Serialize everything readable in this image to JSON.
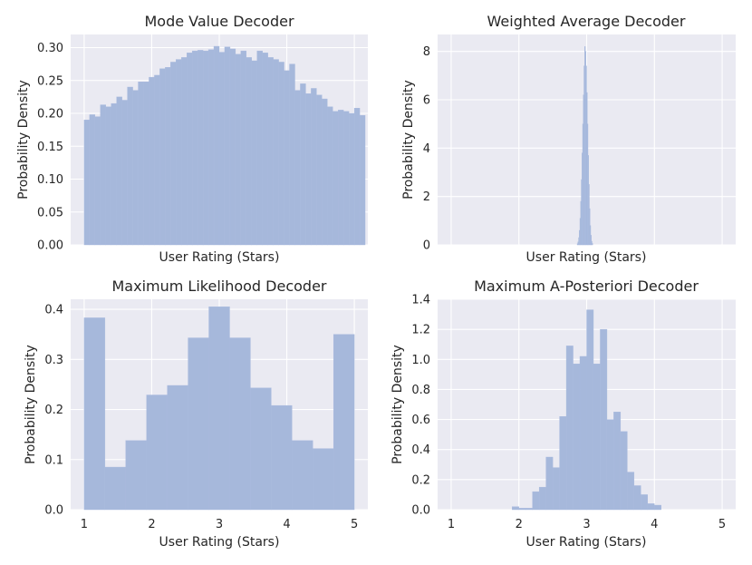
{
  "chart_data": [
    {
      "type": "bar",
      "title": "Mode Value Decoder",
      "xlabel": "User Rating (Stars)",
      "ylabel": "Probability Density",
      "xlim": [
        0.8,
        5.2
      ],
      "ylim": [
        0,
        0.32
      ],
      "xticks": [],
      "yticks": [
        0.0,
        0.05,
        0.1,
        0.15,
        0.2,
        0.25,
        0.3
      ],
      "ytick_labels": [
        "0.00",
        "0.05",
        "0.10",
        "0.15",
        "0.20",
        "0.25",
        "0.30"
      ],
      "bin_start": 1.0,
      "bin_width": 0.08,
      "values": [
        0.19,
        0.198,
        0.195,
        0.213,
        0.21,
        0.215,
        0.225,
        0.22,
        0.24,
        0.235,
        0.248,
        0.248,
        0.255,
        0.258,
        0.268,
        0.27,
        0.278,
        0.282,
        0.285,
        0.292,
        0.295,
        0.296,
        0.295,
        0.297,
        0.302,
        0.293,
        0.301,
        0.298,
        0.29,
        0.295,
        0.285,
        0.28,
        0.295,
        0.292,
        0.285,
        0.282,
        0.278,
        0.265,
        0.275,
        0.235,
        0.245,
        0.23,
        0.238,
        0.228,
        0.222,
        0.21,
        0.203,
        0.205,
        0.203,
        0.2,
        0.208,
        0.197
      ]
    },
    {
      "type": "bar",
      "title": "Weighted Average Decoder",
      "xlabel": "User Rating (Stars)",
      "ylabel": "Probability Density",
      "xlim": [
        0.8,
        5.2
      ],
      "ylim": [
        0,
        8.7
      ],
      "xticks": [],
      "yticks": [
        0,
        2,
        4,
        6,
        8
      ],
      "ytick_labels": [
        "0",
        "2",
        "4",
        "6",
        "8"
      ],
      "bin_start": 2.86,
      "bin_width": 0.01,
      "values": [
        0.05,
        0.12,
        0.3,
        0.6,
        1.1,
        1.8,
        2.7,
        3.8,
        5.0,
        6.2,
        7.4,
        8.2,
        8.0,
        7.4,
        6.3,
        5.0,
        3.7,
        2.5,
        1.5,
        0.8,
        0.4,
        0.15,
        0.06
      ]
    },
    {
      "type": "bar",
      "title": "Maximum Likelihood Decoder",
      "xlabel": "User Rating (Stars)",
      "ylabel": "Probability Density",
      "xlim": [
        0.8,
        5.2
      ],
      "ylim": [
        0,
        0.42
      ],
      "xticks": [
        1,
        2,
        3,
        4,
        5
      ],
      "xtick_labels": [
        "1",
        "2",
        "3",
        "4",
        "5"
      ],
      "yticks": [
        0.0,
        0.1,
        0.2,
        0.3,
        0.4
      ],
      "ytick_labels": [
        "0.0",
        "0.1",
        "0.2",
        "0.3",
        "0.4"
      ],
      "bin_start": 1.0,
      "bin_width": 0.3077,
      "values": [
        0.383,
        0.085,
        0.138,
        0.229,
        0.248,
        0.343,
        0.405,
        0.343,
        0.243,
        0.208,
        0.138,
        0.122,
        0.35
      ]
    },
    {
      "type": "bar",
      "title": "Maximum A-Posteriori Decoder",
      "xlabel": "User Rating (Stars)",
      "ylabel": "Probability Density",
      "xlim": [
        0.8,
        5.2
      ],
      "ylim": [
        0,
        1.4
      ],
      "xticks": [
        1,
        2,
        3,
        4,
        5
      ],
      "xtick_labels": [
        "1",
        "2",
        "3",
        "4",
        "5"
      ],
      "yticks": [
        0.0,
        0.2,
        0.4,
        0.6,
        0.8,
        1.0,
        1.2,
        1.4
      ],
      "ytick_labels": [
        "0.0",
        "0.2",
        "0.4",
        "0.6",
        "0.8",
        "1.0",
        "1.2",
        "1.4"
      ],
      "bin_start": 1.9,
      "bin_width": 0.1,
      "values": [
        0.02,
        0.01,
        0.01,
        0.12,
        0.15,
        0.35,
        0.28,
        0.62,
        1.09,
        0.97,
        1.02,
        1.33,
        0.97,
        1.2,
        0.6,
        0.65,
        0.52,
        0.25,
        0.16,
        0.1,
        0.04,
        0.03
      ]
    }
  ]
}
